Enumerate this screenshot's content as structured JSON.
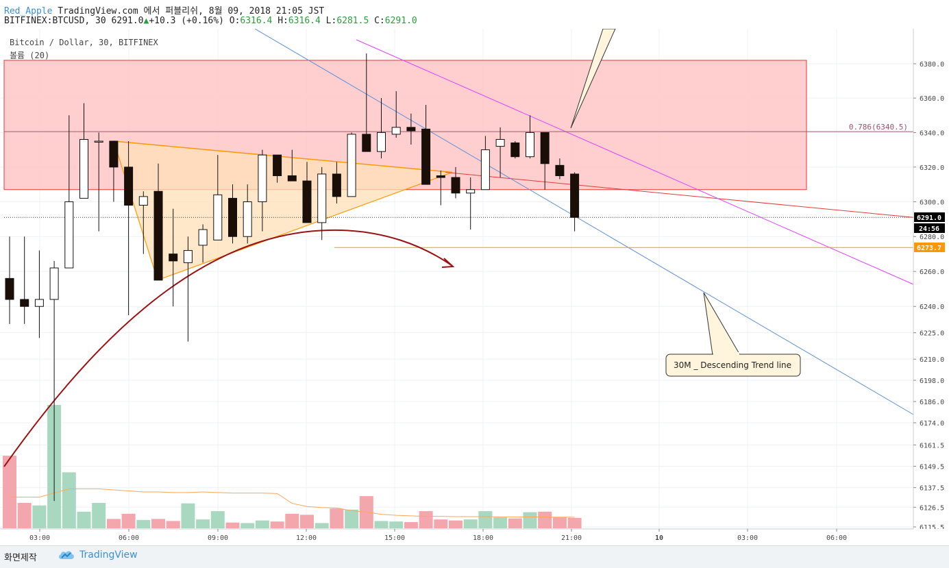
{
  "header": {
    "user": "Red_Apple",
    "publish_text": "TradingView.com 에서 퍼블리쉬, 8월 09, 2018 21:05 JST",
    "symbol": "BITFINEX:BTCUSD, 30",
    "last": "6291.0",
    "change": "+10.3 (+0.16%)",
    "o_label": "O:",
    "o_val": "6316.4",
    "h_label": "H:",
    "h_val": "6316.4",
    "l_label": "L:",
    "l_val": "6281.5",
    "c_label": "C:",
    "c_val": "6291.0"
  },
  "legend": {
    "title": "Bitcoin / Dollar, 30, BITFINEX",
    "volume": "볼륨 (20)"
  },
  "footer": {
    "made": "화면제작",
    "brand": "TradingView"
  },
  "chart_data": {
    "type": "candlestick",
    "y_scale": "log",
    "ylim": [
      6113,
      6395
    ],
    "y_ticks": [
      6380.0,
      6360.0,
      6340.0,
      6320.0,
      6300.0,
      6280.0,
      6260.0,
      6240.0,
      6225.0,
      6210.0,
      6198.0,
      6186.0,
      6174.0,
      6161.5,
      6149.5,
      6137.5,
      6126.5,
      6115.5
    ],
    "x_ticks": [
      "03:00",
      "06:00",
      "09:00",
      "12:00",
      "15:00",
      "18:00",
      "21:00",
      "10",
      "03:00",
      "06:00"
    ],
    "x_tick_bold": [
      false,
      false,
      false,
      false,
      false,
      false,
      false,
      true,
      false,
      false
    ],
    "price_labels": [
      {
        "text": "6291.0",
        "value": 6291.0,
        "bg": "#000000",
        "fg": "#ffffff"
      },
      {
        "text": "24:56",
        "value": 6284.6,
        "bg": "#000000",
        "fg": "#ffffff"
      },
      {
        "text": "6273.7",
        "value": 6273.7,
        "bg": "#ff9800",
        "fg": "#ffffff"
      }
    ],
    "candles": [
      [
        6256,
        6280,
        6230,
        6244
      ],
      [
        6244,
        6280,
        6230,
        6240
      ],
      [
        6240,
        6272,
        6222,
        6244
      ],
      [
        6244,
        6266,
        6130,
        6262
      ],
      [
        6262,
        6350,
        6262,
        6300
      ],
      [
        6302,
        6357,
        6302,
        6336
      ],
      [
        6335,
        6340,
        6283,
        6335
      ],
      [
        6335,
        6335,
        6300,
        6320
      ],
      [
        6320,
        6335,
        6235,
        6298
      ],
      [
        6298,
        6306,
        6270,
        6303
      ],
      [
        6306,
        6322,
        6255,
        6255
      ],
      [
        6270,
        6296,
        6240,
        6266
      ],
      [
        6265,
        6280,
        6220,
        6272
      ],
      [
        6275,
        6287,
        6265,
        6284
      ],
      [
        6278,
        6327,
        6278,
        6304
      ],
      [
        6302,
        6310,
        6276,
        6280
      ],
      [
        6280,
        6310,
        6276,
        6300
      ],
      [
        6300,
        6330,
        6283,
        6327
      ],
      [
        6327,
        6327,
        6311,
        6315
      ],
      [
        6315,
        6330,
        6313,
        6312
      ],
      [
        6312,
        6323,
        6288,
        6288
      ],
      [
        6288,
        6320,
        6278,
        6316
      ],
      [
        6316,
        6323,
        6299,
        6303
      ],
      [
        6303,
        6340,
        6303,
        6339
      ],
      [
        6339,
        6386,
        6329,
        6329
      ],
      [
        6329,
        6360,
        6325,
        6340
      ],
      [
        6339,
        6364,
        6337,
        6343
      ],
      [
        6343,
        6351,
        6333,
        6341
      ],
      [
        6342,
        6356,
        6310,
        6310
      ],
      [
        6315,
        6318,
        6298,
        6314
      ],
      [
        6314,
        6320,
        6302,
        6305
      ],
      [
        6305,
        6314,
        6284,
        6307
      ],
      [
        6307,
        6338,
        6307,
        6330
      ],
      [
        6332,
        6343,
        6314,
        6336
      ],
      [
        6334,
        6335,
        6325,
        6326
      ],
      [
        6326,
        6350,
        6325,
        6340
      ],
      [
        6340,
        6340,
        6307,
        6322
      ],
      [
        6321,
        6325,
        6313,
        6315
      ],
      [
        6316,
        6317,
        6283,
        6291
      ]
    ],
    "volumes": [
      1400,
      490,
      440,
      2380,
      1080,
      320,
      490,
      180,
      280,
      160,
      180,
      140,
      480,
      170,
      330,
      110,
      100,
      150,
      130,
      280,
      260,
      100,
      380,
      360,
      620,
      140,
      130,
      120,
      330,
      170,
      150,
      170,
      330,
      210,
      190,
      310,
      320,
      210,
      200
    ],
    "volume_ma": [
      600,
      600,
      600,
      680,
      760,
      760,
      760,
      740,
      720,
      700,
      700,
      690,
      690,
      700,
      690,
      680,
      680,
      680,
      670,
      480,
      420,
      400,
      390,
      340,
      310,
      270,
      250,
      240,
      230,
      230,
      225,
      225,
      225,
      220,
      220,
      218,
      216,
      215,
      214
    ],
    "annotations": [
      {
        "type": "fib_level",
        "label": "0.786(6340.5)",
        "value": 6340.5
      },
      {
        "type": "callout",
        "label": "30M _ Descending Trend line"
      },
      {
        "type": "horizontal_line",
        "value": 6273.7,
        "color": "#ff9800"
      },
      {
        "type": "horizontal_line",
        "value": 6291.0,
        "style": "dotted"
      }
    ],
    "colors": {
      "up_body": "#ffffff",
      "down_body": "#1a0e07",
      "zone_fill": "#ffc7c7",
      "zone_border": "#e53935",
      "triangle_fill": "#ffe0b8",
      "triangle_border": "#ff9800",
      "arc": "#9b1111",
      "descending_blue": "#5b8fd9",
      "descending_magenta": "#e040fb",
      "red_line": "#e53935",
      "vol_up": "#a8d8c0",
      "vol_down": "#f4a6ad"
    }
  }
}
